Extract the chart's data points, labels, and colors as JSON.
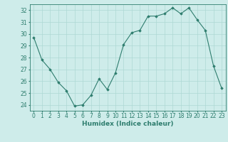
{
  "x": [
    0,
    1,
    2,
    3,
    4,
    5,
    6,
    7,
    8,
    9,
    10,
    11,
    12,
    13,
    14,
    15,
    16,
    17,
    18,
    19,
    20,
    21,
    22,
    23
  ],
  "y": [
    29.7,
    27.8,
    27.0,
    25.9,
    25.2,
    23.9,
    24.0,
    24.8,
    26.2,
    25.3,
    26.7,
    29.1,
    30.1,
    30.3,
    31.5,
    31.5,
    31.7,
    32.2,
    31.7,
    32.2,
    31.2,
    30.3,
    27.3,
    25.4
  ],
  "line_color": "#2e7d6e",
  "marker": "D",
  "marker_size": 1.8,
  "bg_color": "#ceecea",
  "grid_color": "#aed8d4",
  "xlabel": "Humidex (Indice chaleur)",
  "xlabel_fontsize": 6.5,
  "tick_fontsize": 5.5,
  "ylim": [
    23.5,
    32.5
  ],
  "xlim": [
    -0.5,
    23.5
  ],
  "yticks": [
    24,
    25,
    26,
    27,
    28,
    29,
    30,
    31,
    32
  ],
  "xticks": [
    0,
    1,
    2,
    3,
    4,
    5,
    6,
    7,
    8,
    9,
    10,
    11,
    12,
    13,
    14,
    15,
    16,
    17,
    18,
    19,
    20,
    21,
    22,
    23
  ]
}
